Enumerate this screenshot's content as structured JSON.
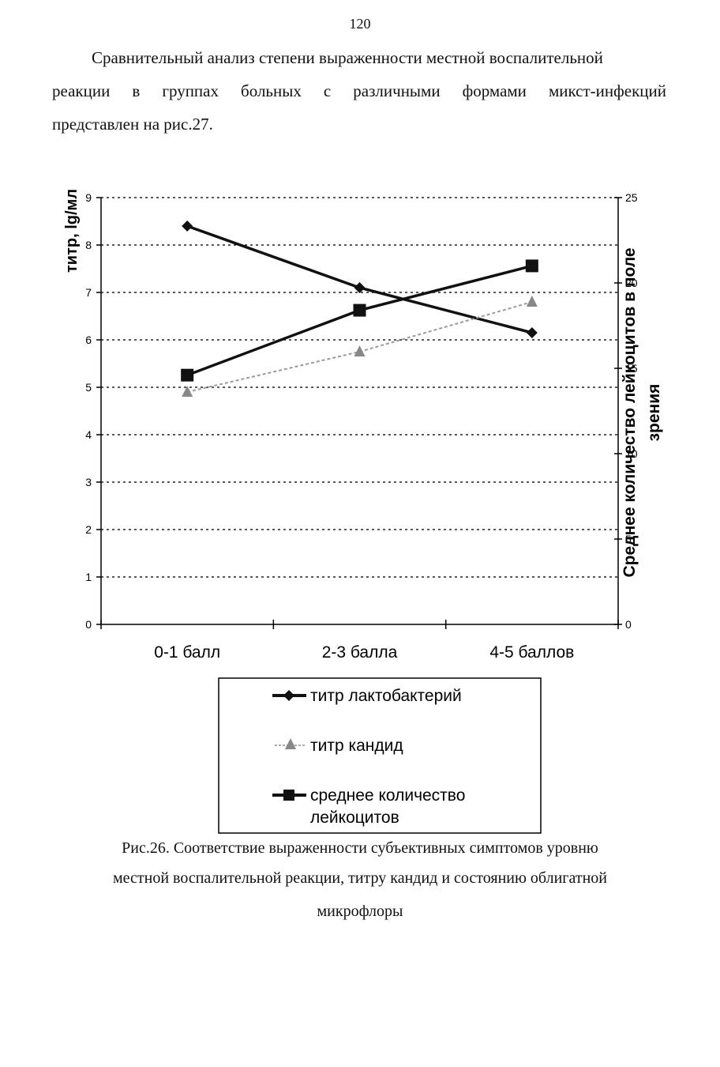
{
  "page": {
    "number": "120",
    "paragraph_lines": [
      "Сравнительный анализ степени выраженности местной воспалительной",
      "реакции в группах больных с различными формами микст-инфекций",
      "представлен на рис.27."
    ],
    "caption_lines": [
      "Рис.26. Соответствие выраженности субъективных симптомов уровню",
      "местной воспалительной реакции, титру кандид и состоянию облигатной",
      "микрофлоры"
    ]
  },
  "chart_data": {
    "type": "line",
    "categories": [
      "0-1 балл",
      "2-3 балла",
      "4-5 баллов"
    ],
    "ylabel_left": "титр, lg/мл",
    "ylabel_right_lines": [
      "Среднее количество лейкоцитов в поле",
      "зрения"
    ],
    "ylim_left": [
      0,
      9
    ],
    "ylim_right": [
      0,
      25
    ],
    "yticks_left": [
      0,
      1,
      2,
      3,
      4,
      5,
      6,
      7,
      8,
      9
    ],
    "yticks_right": [
      0,
      5,
      10,
      15,
      20,
      25
    ],
    "grid": true,
    "grid_style": "dotted horizontal",
    "legend_position": "bottom",
    "series": [
      {
        "name": "титр лактобактерий",
        "axis": "left",
        "values": [
          8.4,
          7.1,
          6.15
        ],
        "marker": "diamond",
        "color": "#111111",
        "style": "solid"
      },
      {
        "name": "титр кандид",
        "axis": "left",
        "values": [
          4.9,
          5.75,
          6.8
        ],
        "marker": "triangle",
        "color": "#9a9a9a",
        "style": "dashed"
      },
      {
        "name": "среднее количество лейкоцитов",
        "legend_lines": [
          "среднее количество",
          "лейкоцитов"
        ],
        "axis": "right",
        "values": [
          14.6,
          18.4,
          21.0
        ],
        "marker": "square",
        "color": "#111111",
        "style": "solid"
      }
    ]
  }
}
